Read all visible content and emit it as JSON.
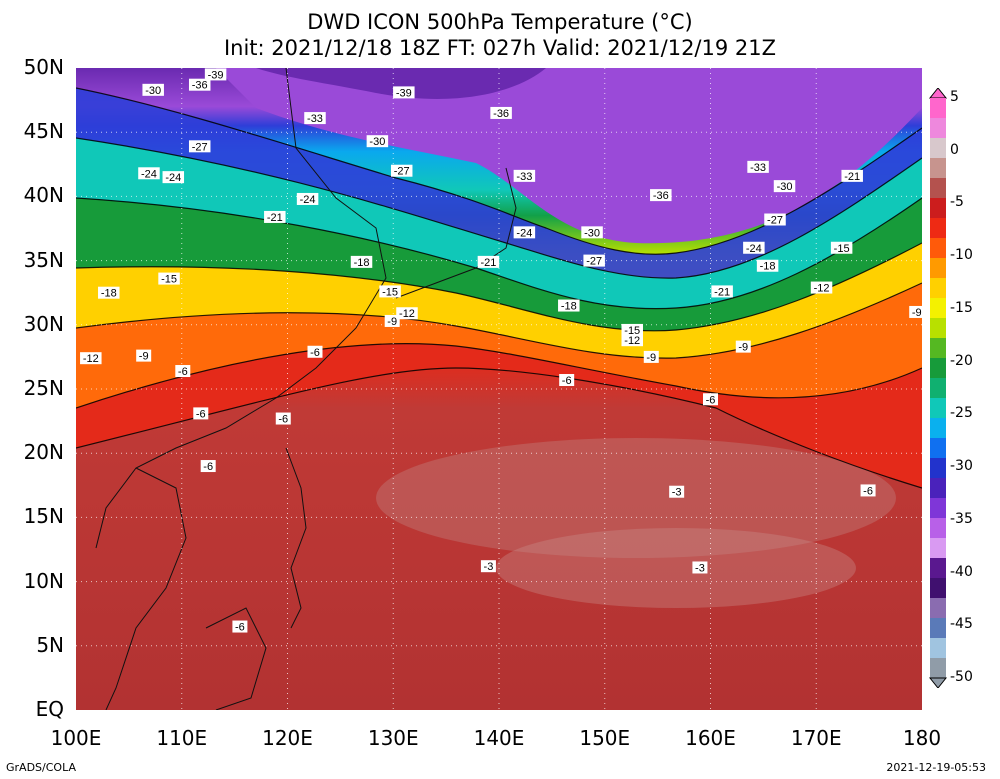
{
  "title": {
    "line1": "DWD ICON 500hPa Temperature (°C)",
    "line2": "Init: 2021/12/18 18Z  FT: 027h  Valid: 2021/12/19 21Z"
  },
  "map": {
    "lat_labels": [
      "50N",
      "45N",
      "40N",
      "35N",
      "30N",
      "25N",
      "20N",
      "15N",
      "10N",
      "5N",
      "EQ"
    ],
    "lon_labels": [
      "100E",
      "110E",
      "120E",
      "130E",
      "140E",
      "150E",
      "160E",
      "170E",
      "180"
    ],
    "contour_labels": [
      {
        "text": "-39",
        "lon": 113.2,
        "lat": 49.5
      },
      {
        "text": "-30",
        "lon": 107.3,
        "lat": 48.3
      },
      {
        "text": "-36",
        "lon": 111.7,
        "lat": 48.7
      },
      {
        "text": "-39",
        "lon": 131.0,
        "lat": 48.1
      },
      {
        "text": "-36",
        "lon": 140.2,
        "lat": 46.5
      },
      {
        "text": "-33",
        "lon": 122.6,
        "lat": 46.1
      },
      {
        "text": "-30",
        "lon": 128.5,
        "lat": 44.3
      },
      {
        "text": "-27",
        "lon": 111.7,
        "lat": 43.9
      },
      {
        "text": "-27",
        "lon": 130.8,
        "lat": 42.0
      },
      {
        "text": "-33",
        "lon": 142.4,
        "lat": 41.6
      },
      {
        "text": "-33",
        "lon": 164.5,
        "lat": 42.3
      },
      {
        "text": "-21",
        "lon": 173.4,
        "lat": 41.6
      },
      {
        "text": "-24",
        "lon": 106.9,
        "lat": 41.8
      },
      {
        "text": "-24",
        "lon": 109.2,
        "lat": 41.5
      },
      {
        "text": "-30",
        "lon": 167.0,
        "lat": 40.8
      },
      {
        "text": "-36",
        "lon": 155.3,
        "lat": 40.1
      },
      {
        "text": "-24",
        "lon": 121.9,
        "lat": 39.8
      },
      {
        "text": "-21",
        "lon": 118.8,
        "lat": 38.4
      },
      {
        "text": "-27",
        "lon": 166.1,
        "lat": 38.2
      },
      {
        "text": "-24",
        "lon": 142.4,
        "lat": 37.2
      },
      {
        "text": "-30",
        "lon": 148.8,
        "lat": 37.2
      },
      {
        "text": "-24",
        "lon": 164.1,
        "lat": 36.0
      },
      {
        "text": "-15",
        "lon": 172.4,
        "lat": 36.0
      },
      {
        "text": "-27",
        "lon": 149.0,
        "lat": 35.0
      },
      {
        "text": "-18",
        "lon": 127.0,
        "lat": 34.9
      },
      {
        "text": "-21",
        "lon": 139.0,
        "lat": 34.9
      },
      {
        "text": "-18",
        "lon": 165.4,
        "lat": 34.6
      },
      {
        "text": "-15",
        "lon": 108.8,
        "lat": 33.6
      },
      {
        "text": "-18",
        "lon": 103.1,
        "lat": 32.5
      },
      {
        "text": "-12",
        "lon": 170.5,
        "lat": 32.9
      },
      {
        "text": "-21",
        "lon": 161.1,
        "lat": 32.6
      },
      {
        "text": "-15",
        "lon": 129.7,
        "lat": 32.6
      },
      {
        "text": "-18",
        "lon": 146.6,
        "lat": 31.5
      },
      {
        "text": "-12",
        "lon": 131.3,
        "lat": 30.9
      },
      {
        "text": "-9",
        "lon": 179.5,
        "lat": 31.0
      },
      {
        "text": "-9",
        "lon": 129.9,
        "lat": 30.3
      },
      {
        "text": "-15",
        "lon": 152.6,
        "lat": 29.6
      },
      {
        "text": "-12",
        "lon": 152.6,
        "lat": 28.8
      },
      {
        "text": "-9",
        "lon": 163.1,
        "lat": 28.3
      },
      {
        "text": "-12",
        "lon": 101.4,
        "lat": 27.4
      },
      {
        "text": "-9",
        "lon": 106.4,
        "lat": 27.6
      },
      {
        "text": "-6",
        "lon": 122.6,
        "lat": 27.9
      },
      {
        "text": "-9",
        "lon": 154.4,
        "lat": 27.5
      },
      {
        "text": "-6",
        "lon": 110.1,
        "lat": 26.4
      },
      {
        "text": "-6",
        "lon": 146.4,
        "lat": 25.7
      },
      {
        "text": "-6",
        "lon": 160.0,
        "lat": 24.2
      },
      {
        "text": "-6",
        "lon": 111.8,
        "lat": 23.1
      },
      {
        "text": "-6",
        "lon": 119.6,
        "lat": 22.7
      },
      {
        "text": "-6",
        "lon": 112.5,
        "lat": 19.0
      },
      {
        "text": "-3",
        "lon": 156.8,
        "lat": 17.0
      },
      {
        "text": "-6",
        "lon": 174.9,
        "lat": 17.1
      },
      {
        "text": "-3",
        "lon": 139.0,
        "lat": 11.2
      },
      {
        "text": "-3",
        "lon": 159.0,
        "lat": 11.1
      },
      {
        "text": "-6",
        "lon": 115.5,
        "lat": 6.5
      }
    ]
  },
  "colorbar": {
    "labels": [
      "5",
      "0",
      "-5",
      "-10",
      "-15",
      "-20",
      "-25",
      "-30",
      "-35",
      "-40",
      "-45",
      "-50"
    ],
    "colors": [
      "#ff66cc",
      "#ee88dd",
      "#d8c8cc",
      "#c7948e",
      "#b4524e",
      "#cc1d1d",
      "#ee2a14",
      "#ff5a0a",
      "#ff9a00",
      "#ffd000",
      "#f4f100",
      "#b8e000",
      "#55b822",
      "#179b3a",
      "#10b070",
      "#10c8b8",
      "#0ab0ee",
      "#1070f0",
      "#2233cc",
      "#4a22bb",
      "#7f36d8",
      "#b860e8",
      "#d99af2",
      "#5a188f",
      "#40106f",
      "#8a6cb0",
      "#5a7ab8",
      "#a0c4e0",
      "#909ca8"
    ],
    "top_value": 5,
    "bottom_value": -50
  },
  "footer": {
    "left": "GrADS/COLA",
    "right": "2021-12-19-05:53"
  }
}
